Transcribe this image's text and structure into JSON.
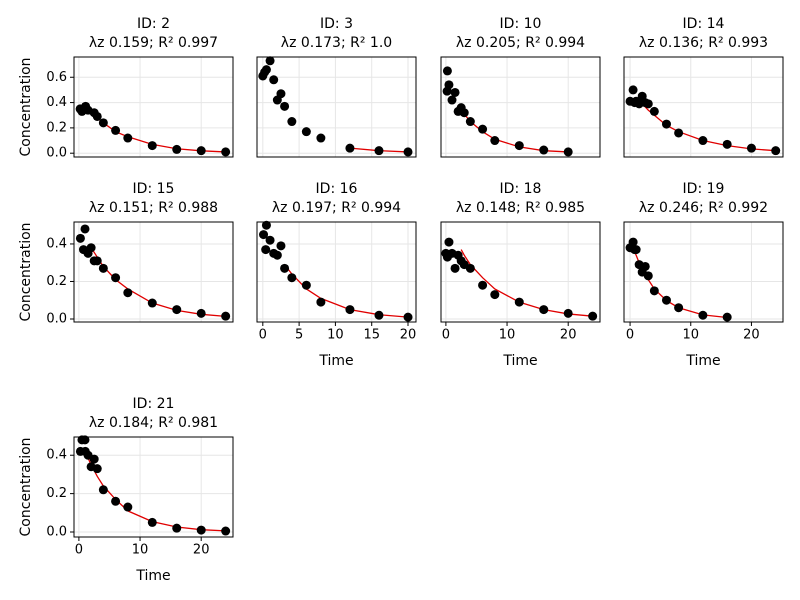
{
  "chart_data": [
    {
      "type": "scatter",
      "title": "ID: 2",
      "subtitle": "λz 0.159; R² 0.997",
      "ylabel": "Concentration",
      "xlim": [
        -0.8,
        25.2
      ],
      "xticks": [
        0,
        10,
        20
      ],
      "show_xticklabels": false,
      "ylim": [
        -0.03,
        0.76
      ],
      "yticks": [
        {
          "value": 0,
          "label": "0.0"
        },
        {
          "value": 0.2,
          "label": "0.2"
        },
        {
          "value": 0.4,
          "label": "0.4"
        },
        {
          "value": 0.6,
          "label": "0.6"
        }
      ],
      "show_yticklabels": true,
      "grid": true,
      "series": [
        {
          "type": "scatter",
          "color": "#000000",
          "x": [
            0.2,
            0.5,
            1,
            1.1,
            1.5,
            2.5,
            3,
            4,
            6,
            8,
            12,
            16,
            20,
            24
          ],
          "values": [
            0.35,
            0.33,
            0.36,
            0.37,
            0.34,
            0.32,
            0.29,
            0.24,
            0.18,
            0.12,
            0.06,
            0.03,
            0.02,
            0.01
          ]
        },
        {
          "type": "line",
          "color": "#e00000",
          "x": [
            1.5,
            2.5,
            3,
            4,
            6,
            8,
            12,
            16,
            20,
            24
          ],
          "values": [
            0.35,
            0.3,
            0.28,
            0.24,
            0.17,
            0.13,
            0.07,
            0.035,
            0.019,
            0.01
          ]
        }
      ]
    },
    {
      "type": "scatter",
      "title": "ID: 3",
      "subtitle": "λz 0.173; R² 1.0",
      "xlim": [
        -0.8,
        21.1
      ],
      "xticks": [
        0,
        5,
        10,
        15,
        20
      ],
      "show_xticklabels": false,
      "ylim": [
        -0.03,
        0.76
      ],
      "yticks": [
        {
          "value": 0,
          "label": "0.0"
        },
        {
          "value": 0.2,
          "label": "0.2"
        },
        {
          "value": 0.4,
          "label": "0.4"
        },
        {
          "value": 0.6,
          "label": "0.6"
        }
      ],
      "show_yticklabels": false,
      "grid": true,
      "series": [
        {
          "type": "scatter",
          "color": "#000000",
          "x": [
            0,
            0.25,
            0.5,
            1,
            1.5,
            2,
            2.5,
            3,
            4,
            6,
            8,
            12,
            16,
            20
          ],
          "values": [
            0.61,
            0.64,
            0.66,
            0.73,
            0.58,
            0.42,
            0.47,
            0.37,
            0.25,
            0.17,
            0.12,
            0.04,
            0.02,
            0.01
          ]
        },
        {
          "type": "line",
          "color": "#e00000",
          "x": [
            12,
            16,
            20
          ],
          "values": [
            0.04,
            0.02,
            0.01
          ]
        }
      ]
    },
    {
      "type": "scatter",
      "title": "ID: 10",
      "subtitle": "λz 0.205; R² 0.994",
      "xlim": [
        -0.8,
        25.2
      ],
      "xticks": [
        0,
        10,
        20
      ],
      "show_xticklabels": false,
      "ylim": [
        -0.03,
        0.76
      ],
      "yticks": [
        {
          "value": 0,
          "label": "0.0"
        },
        {
          "value": 0.2,
          "label": "0.2"
        },
        {
          "value": 0.4,
          "label": "0.4"
        },
        {
          "value": 0.6,
          "label": "0.6"
        }
      ],
      "show_yticklabels": false,
      "grid": true,
      "series": [
        {
          "type": "scatter",
          "color": "#000000",
          "x": [
            0.2,
            0.25,
            0.5,
            1,
            1.5,
            2,
            2.5,
            3,
            4,
            6,
            8,
            12,
            16,
            20
          ],
          "values": [
            0.49,
            0.65,
            0.54,
            0.42,
            0.48,
            0.33,
            0.36,
            0.32,
            0.25,
            0.19,
            0.1,
            0.06,
            0.025,
            0.01
          ]
        },
        {
          "type": "line",
          "color": "#e00000",
          "x": [
            2,
            3,
            4,
            6,
            8,
            12,
            16,
            20
          ],
          "values": [
            0.38,
            0.31,
            0.25,
            0.17,
            0.11,
            0.05,
            0.02,
            0.01
          ]
        }
      ]
    },
    {
      "type": "scatter",
      "title": "ID: 14",
      "subtitle": "λz 0.136; R² 0.993",
      "xlim": [
        -1,
        25.2
      ],
      "xticks": [
        0,
        10,
        20
      ],
      "show_xticklabels": false,
      "ylim": [
        -0.03,
        0.76
      ],
      "yticks": [
        {
          "value": 0,
          "label": "0.0"
        },
        {
          "value": 0.2,
          "label": "0.2"
        },
        {
          "value": 0.4,
          "label": "0.4"
        },
        {
          "value": 0.6,
          "label": "0.6"
        }
      ],
      "show_yticklabels": false,
      "grid": true,
      "series": [
        {
          "type": "scatter",
          "color": "#000000",
          "x": [
            0,
            0.5,
            0.75,
            1,
            1.5,
            2,
            2.5,
            3,
            4,
            6,
            8,
            12,
            16,
            20,
            24
          ],
          "values": [
            0.41,
            0.5,
            0.4,
            0.41,
            0.39,
            0.45,
            0.4,
            0.39,
            0.33,
            0.23,
            0.16,
            0.1,
            0.07,
            0.04,
            0.02
          ]
        },
        {
          "type": "line",
          "color": "#e00000",
          "x": [
            2,
            3,
            4,
            6,
            8,
            12,
            16,
            20,
            24
          ],
          "values": [
            0.39,
            0.34,
            0.3,
            0.22,
            0.17,
            0.1,
            0.06,
            0.034,
            0.02
          ]
        }
      ]
    },
    {
      "type": "scatter",
      "title": "ID: 15",
      "subtitle": "λz 0.151; R² 0.988",
      "ylabel": "Concentration",
      "xlim": [
        -0.8,
        25.2
      ],
      "xticks": [
        0,
        10,
        20
      ],
      "show_xticklabels": false,
      "ylim": [
        -0.016,
        0.517
      ],
      "yticks": [
        {
          "value": 0,
          "label": "0.0"
        },
        {
          "value": 0.2,
          "label": "0.2"
        },
        {
          "value": 0.4,
          "label": "0.4"
        }
      ],
      "show_yticklabels": true,
      "grid": true,
      "series": [
        {
          "type": "scatter",
          "color": "#000000",
          "x": [
            0.25,
            1,
            0.75,
            1.5,
            2,
            2.5,
            3,
            4,
            6,
            8,
            12,
            16,
            20,
            24
          ],
          "values": [
            0.43,
            0.48,
            0.37,
            0.35,
            0.38,
            0.31,
            0.31,
            0.27,
            0.22,
            0.14,
            0.085,
            0.05,
            0.03,
            0.015
          ]
        },
        {
          "type": "line",
          "color": "#e00000",
          "x": [
            2,
            3,
            4,
            6,
            8,
            12,
            16,
            20,
            24
          ],
          "values": [
            0.38,
            0.33,
            0.28,
            0.21,
            0.16,
            0.085,
            0.046,
            0.025,
            0.014
          ]
        }
      ]
    },
    {
      "type": "scatter",
      "title": "ID: 16",
      "subtitle": "λz 0.197; R² 0.994",
      "xlabel": "Time",
      "xlim": [
        -0.8,
        21.1
      ],
      "xticks": [
        0,
        5,
        10,
        15,
        20
      ],
      "show_xticklabels": true,
      "ylim": [
        -0.016,
        0.517
      ],
      "yticks": [
        {
          "value": 0,
          "label": "0.0"
        },
        {
          "value": 0.2,
          "label": "0.2"
        },
        {
          "value": 0.4,
          "label": "0.4"
        }
      ],
      "show_yticklabels": false,
      "grid": true,
      "series": [
        {
          "type": "scatter",
          "color": "#000000",
          "x": [
            0.1,
            0.5,
            0.4,
            1,
            1.5,
            2,
            2.5,
            3,
            4,
            6,
            8,
            12,
            16,
            20
          ],
          "values": [
            0.45,
            0.5,
            0.37,
            0.42,
            0.35,
            0.34,
            0.39,
            0.27,
            0.22,
            0.18,
            0.09,
            0.05,
            0.02,
            0.01
          ]
        },
        {
          "type": "line",
          "color": "#e00000",
          "x": [
            3,
            4,
            6,
            8,
            12,
            16,
            20
          ],
          "values": [
            0.29,
            0.24,
            0.16,
            0.11,
            0.05,
            0.023,
            0.01
          ]
        }
      ]
    },
    {
      "type": "scatter",
      "title": "ID: 18",
      "subtitle": "λz 0.148; R² 0.985",
      "xlabel": "Time",
      "xlim": [
        -0.8,
        25.2
      ],
      "xticks": [
        0,
        10,
        20
      ],
      "show_xticklabels": true,
      "ylim": [
        -0.016,
        0.517
      ],
      "yticks": [
        {
          "value": 0,
          "label": "0.0"
        },
        {
          "value": 0.2,
          "label": "0.2"
        },
        {
          "value": 0.4,
          "label": "0.4"
        }
      ],
      "show_yticklabels": false,
      "grid": true,
      "series": [
        {
          "type": "scatter",
          "color": "#000000",
          "x": [
            0,
            0.5,
            0.25,
            1,
            1.5,
            2,
            2.5,
            3,
            4,
            6,
            8,
            12,
            16,
            20,
            24
          ],
          "values": [
            0.35,
            0.41,
            0.33,
            0.35,
            0.27,
            0.34,
            0.31,
            0.29,
            0.27,
            0.18,
            0.13,
            0.09,
            0.05,
            0.03,
            0.015
          ]
        },
        {
          "type": "line",
          "color": "#e00000",
          "x": [
            2.5,
            3,
            4,
            6,
            8,
            12,
            16,
            20,
            24
          ],
          "values": [
            0.37,
            0.34,
            0.29,
            0.22,
            0.16,
            0.09,
            0.05,
            0.027,
            0.015
          ]
        }
      ]
    },
    {
      "type": "scatter",
      "title": "ID: 19",
      "subtitle": "λz 0.246; R² 0.992",
      "xlabel": "Time",
      "xlim": [
        -1,
        25.2
      ],
      "xticks": [
        0,
        10,
        20
      ],
      "show_xticklabels": true,
      "ylim": [
        -0.016,
        0.517
      ],
      "yticks": [
        {
          "value": 0,
          "label": "0.0"
        },
        {
          "value": 0.2,
          "label": "0.2"
        },
        {
          "value": 0.4,
          "label": "0.4"
        }
      ],
      "show_yticklabels": false,
      "grid": true,
      "series": [
        {
          "type": "scatter",
          "color": "#000000",
          "x": [
            0,
            0.5,
            0.75,
            1,
            1.5,
            2,
            2.5,
            3,
            4,
            6,
            8,
            12,
            16
          ],
          "values": [
            0.38,
            0.41,
            0.37,
            0.37,
            0.29,
            0.25,
            0.28,
            0.23,
            0.15,
            0.1,
            0.06,
            0.02,
            0.01
          ]
        },
        {
          "type": "line",
          "color": "#e00000",
          "x": [
            0.5,
            1,
            2,
            3,
            4,
            6,
            8,
            12,
            16
          ],
          "values": [
            0.38,
            0.34,
            0.26,
            0.21,
            0.16,
            0.098,
            0.06,
            0.022,
            0.008
          ]
        }
      ]
    },
    {
      "type": "scatter",
      "title": "ID: 21",
      "subtitle": "λz 0.184; R² 0.981",
      "xlabel": "Time",
      "ylabel": "Concentration",
      "xlim": [
        -0.8,
        25.2
      ],
      "xticks": [
        0,
        10,
        20
      ],
      "show_xticklabels": true,
      "ylim": [
        -0.026,
        0.495
      ],
      "yticks": [
        {
          "value": 0,
          "label": "0.0"
        },
        {
          "value": 0.2,
          "label": "0.2"
        },
        {
          "value": 0.4,
          "label": "0.4"
        }
      ],
      "show_yticklabels": true,
      "grid": true,
      "series": [
        {
          "type": "scatter",
          "color": "#000000",
          "x": [
            0.25,
            0.5,
            1,
            1.05,
            1.5,
            2,
            2.5,
            3,
            4,
            6,
            8,
            12,
            16,
            20,
            24
          ],
          "values": [
            0.42,
            0.48,
            0.48,
            0.42,
            0.4,
            0.34,
            0.38,
            0.33,
            0.22,
            0.16,
            0.13,
            0.05,
            0.02,
            0.01,
            0.005
          ]
        },
        {
          "type": "line",
          "color": "#e00000",
          "x": [
            1,
            2,
            3,
            4,
            6,
            8,
            12,
            16,
            20,
            24
          ],
          "values": [
            0.42,
            0.35,
            0.29,
            0.24,
            0.17,
            0.11,
            0.054,
            0.026,
            0.012,
            0.006
          ]
        }
      ]
    }
  ]
}
